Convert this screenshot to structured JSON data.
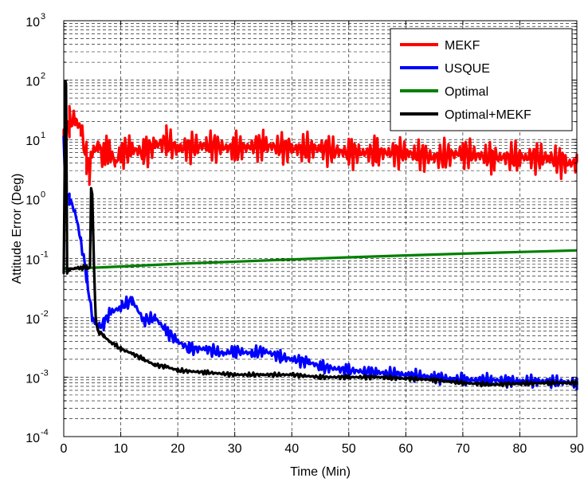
{
  "chart_data": {
    "type": "line",
    "title": "",
    "xlabel": "Time (Min)",
    "ylabel": "Attitude Error (Deg)",
    "xlim": [
      0,
      90
    ],
    "ylim": [
      0.0001,
      1000
    ],
    "yscale": "log",
    "grid": "dashed",
    "legend_position": "top-right",
    "x_ticks": [
      0,
      10,
      20,
      30,
      40,
      50,
      60,
      70,
      80,
      90
    ],
    "y_ticks": [
      {
        "base": "10",
        "exp": "-4"
      },
      {
        "base": "10",
        "exp": "-3"
      },
      {
        "base": "10",
        "exp": "-2"
      },
      {
        "base": "10",
        "exp": "-1"
      },
      {
        "base": "10",
        "exp": "0"
      },
      {
        "base": "10",
        "exp": "1"
      },
      {
        "base": "10",
        "exp": "2"
      },
      {
        "base": "10",
        "exp": "3"
      }
    ],
    "series": [
      {
        "name": "MEKF",
        "color": "#ff0000",
        "x": [
          0,
          1,
          2,
          3,
          4,
          4.5,
          5,
          6,
          7,
          8,
          9,
          10,
          12,
          14,
          16,
          18,
          20,
          25,
          30,
          35,
          40,
          45,
          50,
          55,
          60,
          65,
          70,
          75,
          80,
          85,
          88,
          90
        ],
        "y": [
          10,
          20,
          22,
          15,
          5,
          3,
          6,
          8,
          5,
          7,
          4,
          6,
          7,
          6,
          8,
          9,
          7,
          8,
          7,
          8,
          7,
          7,
          6,
          6,
          6,
          5,
          6,
          5,
          5,
          5,
          4,
          4
        ],
        "oscillation": 0.3
      },
      {
        "name": "USQUE",
        "color": "#0000ff",
        "x": [
          0,
          0.3,
          1,
          2,
          3,
          4,
          5,
          6,
          7,
          8,
          10,
          12,
          14,
          16,
          18,
          20,
          22,
          25,
          28,
          30,
          33,
          35,
          38,
          40,
          43,
          45,
          50,
          55,
          60,
          65,
          70,
          75,
          80,
          85,
          90
        ],
        "y": [
          10,
          1.5,
          1,
          0.6,
          0.2,
          0.05,
          0.01,
          0.007,
          0.008,
          0.012,
          0.015,
          0.02,
          0.009,
          0.01,
          0.006,
          0.004,
          0.003,
          0.003,
          0.0025,
          0.0028,
          0.0025,
          0.0028,
          0.0022,
          0.002,
          0.0018,
          0.0015,
          0.0013,
          0.0012,
          0.0011,
          0.001,
          0.0009,
          0.0009,
          0.00085,
          0.00085,
          0.0008
        ],
        "oscillation": 0.12
      },
      {
        "name": "Optimal",
        "color": "#008000",
        "x": [
          0,
          10,
          20,
          30,
          40,
          50,
          60,
          70,
          80,
          90
        ],
        "y": [
          0.066,
          0.073,
          0.081,
          0.088,
          0.096,
          0.104,
          0.112,
          0.12,
          0.128,
          0.136
        ],
        "oscillation": 0
      },
      {
        "name": "Optimal+MEKF",
        "color": "#000000",
        "x": [
          0,
          0.3,
          0.4,
          0.6,
          1,
          2,
          3,
          4,
          4.6,
          4.8,
          5,
          5.3,
          5.6,
          6,
          7,
          8,
          9,
          10,
          12,
          14,
          16,
          18,
          20,
          25,
          30,
          35,
          40,
          45,
          50,
          55,
          60,
          65,
          70,
          75,
          80,
          85,
          90
        ],
        "y": [
          0.06,
          100,
          90,
          0.06,
          0.065,
          0.068,
          0.07,
          0.07,
          0.07,
          1.5,
          1.2,
          0.08,
          0.01,
          0.006,
          0.005,
          0.004,
          0.0035,
          0.003,
          0.0025,
          0.002,
          0.0016,
          0.0015,
          0.0013,
          0.0012,
          0.0011,
          0.0011,
          0.0011,
          0.001,
          0.001,
          0.001,
          0.00095,
          0.0009,
          0.0008,
          0.00075,
          0.00078,
          0.0008,
          0.0008
        ],
        "oscillation": 0.04
      }
    ]
  }
}
